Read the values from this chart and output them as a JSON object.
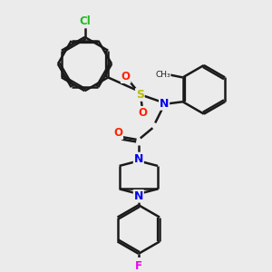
{
  "bg_color": "#ebebeb",
  "bond_color": "#1a1a1a",
  "bond_width": 1.8,
  "figsize": [
    3.0,
    3.0
  ],
  "dpi": 100,
  "atoms": {
    "Cl": {
      "color": "#22bb22",
      "fontsize": 8.5
    },
    "S": {
      "color": "#bbbb00",
      "fontsize": 8.5
    },
    "O": {
      "color": "#ff2200",
      "fontsize": 8.5
    },
    "N": {
      "color": "#0000ee",
      "fontsize": 8.5
    },
    "F": {
      "color": "#ee00ee",
      "fontsize": 8.5
    }
  },
  "scale": 1.0
}
